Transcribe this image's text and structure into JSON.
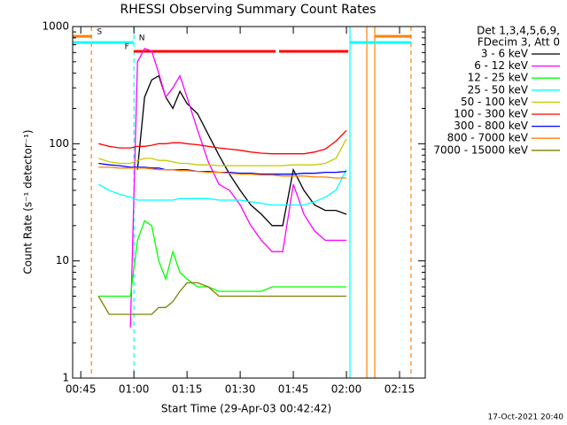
{
  "chart_data": {
    "type": "line",
    "title": "RHESSI Observing Summary Count Rates",
    "x_label": "Start Time (29-Apr-03 00:42:42)",
    "y_label": "Count Rate (s⁻¹ detector⁻¹)",
    "legend_header": [
      "Det 1,3,4,5,6,9,",
      "FDecim 3, Att 0"
    ],
    "footer": "17-Oct-2021 20:40",
    "log_y": true,
    "xlim": [
      "00:42:42",
      "02:22:15"
    ],
    "xticks": [
      "00:45",
      "01:00",
      "01:15",
      "01:30",
      "01:45",
      "02:00",
      "02:15"
    ],
    "ylim": [
      1,
      1000
    ],
    "yticks": [
      1,
      10,
      100,
      1000
    ],
    "x": [
      "00:50",
      "00:53",
      "00:56",
      "00:59",
      "01:01",
      "01:03",
      "01:05",
      "01:07",
      "01:09",
      "01:11",
      "01:13",
      "01:15",
      "01:18",
      "01:21",
      "01:24",
      "01:27",
      "01:30",
      "01:33",
      "01:36",
      "01:39",
      "01:42",
      "01:45",
      "01:48",
      "01:51",
      "01:54",
      "01:57",
      "02:00"
    ],
    "series": [
      {
        "name": "3 - 6 keV",
        "color": "#000000",
        "values": [
          null,
          null,
          null,
          null,
          60,
          250,
          350,
          380,
          250,
          200,
          280,
          220,
          180,
          120,
          80,
          55,
          40,
          30,
          25,
          20,
          20,
          60,
          40,
          30,
          27,
          27,
          25
        ]
      },
      {
        "name": "6 - 12 keV",
        "color": "#ff00ff",
        "values": [
          null,
          null,
          null,
          2.7,
          500,
          650,
          620,
          400,
          250,
          300,
          380,
          250,
          130,
          70,
          45,
          40,
          30,
          20,
          15,
          12,
          12,
          45,
          25,
          18,
          15,
          15,
          15
        ]
      },
      {
        "name": "12 - 25 keV",
        "color": "#00ff00",
        "values": [
          5,
          5,
          5,
          5,
          15,
          22,
          20,
          10,
          7,
          12,
          8,
          7,
          6,
          6,
          5.5,
          5.5,
          5.5,
          5.5,
          5.5,
          6,
          6,
          6,
          6,
          6,
          6,
          6,
          6
        ]
      },
      {
        "name": "25 - 50 keV",
        "color": "#00ffff",
        "values": [
          45,
          40,
          37,
          35,
          33,
          33,
          33,
          33,
          33,
          33,
          34,
          34,
          34,
          34,
          33,
          33,
          33,
          32,
          31,
          30,
          30,
          30,
          30,
          32,
          35,
          40,
          60
        ]
      },
      {
        "name": "50 - 100 keV",
        "color": "#c8c800",
        "values": [
          75,
          70,
          68,
          68,
          72,
          75,
          75,
          72,
          72,
          70,
          68,
          68,
          66,
          66,
          65,
          65,
          65,
          65,
          65,
          65,
          65,
          66,
          66,
          66,
          68,
          75,
          110
        ]
      },
      {
        "name": "100 - 300 keV",
        "color": "#ff0000",
        "values": [
          100,
          95,
          92,
          92,
          95,
          95,
          97,
          100,
          100,
          102,
          102,
          100,
          98,
          95,
          92,
          90,
          88,
          85,
          83,
          82,
          82,
          82,
          82,
          85,
          90,
          105,
          130
        ]
      },
      {
        "name": "300 - 800 keV",
        "color": "#0000ff",
        "values": [
          68,
          66,
          65,
          63,
          63,
          63,
          62,
          62,
          60,
          60,
          60,
          60,
          58,
          58,
          57,
          57,
          56,
          56,
          55,
          55,
          55,
          55,
          56,
          56,
          57,
          57,
          58
        ]
      },
      {
        "name": "800 - 7000 keV",
        "color": "#ff8000",
        "values": [
          63,
          63,
          62,
          62,
          62,
          62,
          61,
          60,
          60,
          60,
          59,
          59,
          58,
          57,
          57,
          56,
          55,
          55,
          54,
          54,
          53,
          53,
          53,
          52,
          52,
          51,
          51
        ]
      },
      {
        "name": "7000 - 15000 keV",
        "color": "#808000",
        "values": [
          5,
          3.5,
          3.5,
          3.5,
          3.5,
          3.5,
          3.5,
          4,
          4,
          4.5,
          5.5,
          6.5,
          6.5,
          6,
          5,
          5,
          5,
          5,
          5,
          5,
          5,
          5,
          5,
          5,
          5,
          5,
          5
        ]
      }
    ],
    "markers": [
      {
        "x": "00:48",
        "color": "#ff8000",
        "dashed": true
      },
      {
        "x": "01:00",
        "color": "#00ffff",
        "dashed": true
      },
      {
        "x": "02:01",
        "color": "#00ffff",
        "dashed": false
      },
      {
        "x": "02:05:45",
        "color": "#ff8000",
        "dashed": false
      },
      {
        "x": "02:08",
        "color": "#ff8000",
        "dashed": false
      },
      {
        "x": "02:18:15",
        "color": "#ff8000",
        "dashed": true
      }
    ],
    "flags": [
      {
        "label": "S",
        "color": "#ff8000",
        "segments": [
          [
            "00:42:42",
            "00:48"
          ],
          [
            "02:08",
            "02:18:15"
          ]
        ]
      },
      {
        "label": "N",
        "color": "#00ffff",
        "segments": [
          [
            "00:42:42",
            "01:00"
          ],
          [
            "02:01",
            "02:18:15"
          ]
        ]
      },
      {
        "label": "F",
        "color": "#ff0000",
        "segments": [
          [
            "01:00",
            "01:40"
          ],
          [
            "01:41",
            "02:00:30"
          ]
        ]
      }
    ]
  }
}
